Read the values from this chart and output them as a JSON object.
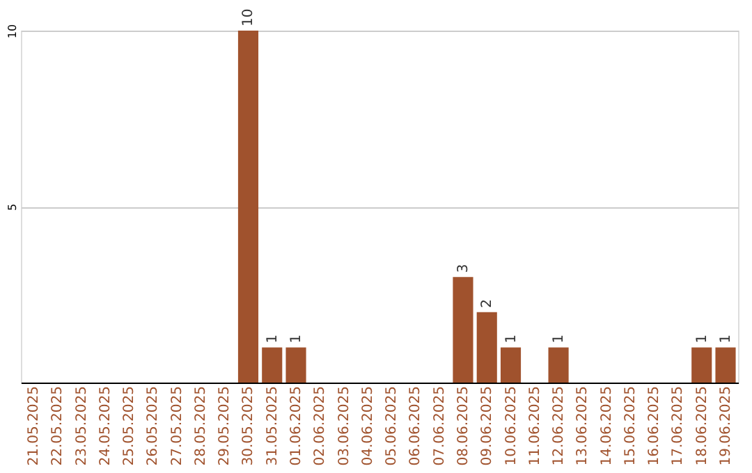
{
  "chart_data": {
    "type": "bar",
    "categories": [
      "21.05.2025",
      "22.05.2025",
      "23.05.2025",
      "24.05.2025",
      "25.05.2025",
      "26.05.2025",
      "27.05.2025",
      "28.05.2025",
      "29.05.2025",
      "30.05.2025",
      "31.05.2025",
      "01.06.2025",
      "02.06.2025",
      "03.06.2025",
      "04.06.2025",
      "05.06.2025",
      "06.06.2025",
      "07.06.2025",
      "08.06.2025",
      "09.06.2025",
      "10.06.2025",
      "11.06.2025",
      "12.06.2025",
      "13.06.2025",
      "14.06.2025",
      "15.06.2025",
      "16.06.2025",
      "17.06.2025",
      "18.06.2025",
      "19.06.2025"
    ],
    "values": [
      0,
      0,
      0,
      0,
      0,
      0,
      0,
      0,
      0,
      10,
      1,
      1,
      0,
      0,
      0,
      0,
      0,
      0,
      3,
      2,
      1,
      0,
      1,
      0,
      0,
      0,
      0,
      0,
      1,
      1
    ],
    "color": "#a0522d",
    "value_labels": [
      null,
      null,
      null,
      null,
      null,
      null,
      null,
      null,
      null,
      "10",
      "1",
      "1",
      null,
      null,
      null,
      null,
      null,
      null,
      "3",
      "2",
      "1",
      null,
      "1",
      null,
      null,
      null,
      null,
      null,
      "1",
      "1"
    ],
    "ylim": [
      0,
      10
    ],
    "yticks": [
      5,
      10
    ],
    "grid": "y"
  }
}
